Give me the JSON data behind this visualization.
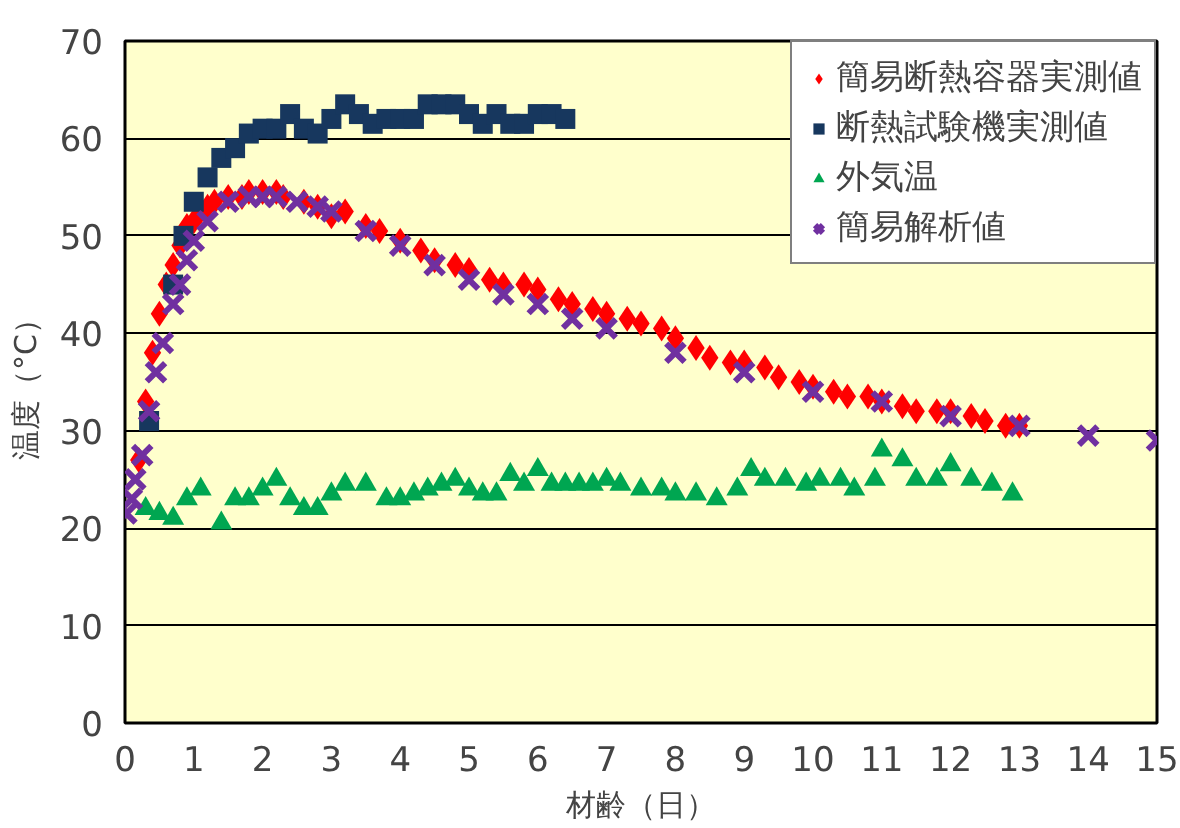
{
  "chart_data": {
    "type": "scatter",
    "xlabel": "材齢（日）",
    "ylabel": "温度（°C）",
    "xlim": [
      0,
      15
    ],
    "ylim": [
      0,
      70
    ],
    "xticks": [
      0,
      1,
      2,
      3,
      4,
      5,
      6,
      7,
      8,
      9,
      10,
      11,
      12,
      13,
      14,
      15
    ],
    "yticks": [
      0,
      10,
      20,
      30,
      40,
      50,
      60,
      70
    ],
    "grid": "y",
    "legend": "top right",
    "series": [
      {
        "name": "簡易断熱容器実測値",
        "color": "#ff0000",
        "marker": "diamond",
        "x": [
          0.2,
          0.3,
          0.4,
          0.5,
          0.6,
          0.7,
          0.8,
          0.9,
          1.0,
          1.1,
          1.2,
          1.3,
          1.5,
          1.7,
          1.8,
          2.0,
          2.2,
          2.3,
          2.6,
          2.8,
          3.0,
          3.2,
          3.5,
          3.7,
          4.0,
          4.3,
          4.5,
          4.8,
          5.0,
          5.3,
          5.5,
          5.8,
          6.0,
          6.3,
          6.5,
          6.8,
          7.0,
          7.3,
          7.5,
          7.8,
          8.0,
          8.3,
          8.5,
          8.8,
          9.0,
          9.3,
          9.5,
          9.8,
          10.0,
          10.3,
          10.5,
          10.8,
          11.0,
          11.3,
          11.5,
          11.8,
          12.0,
          12.3,
          12.5,
          12.8,
          13.0
        ],
        "values": [
          27,
          33,
          38,
          42,
          45,
          47,
          49,
          51,
          51.5,
          52.5,
          53,
          53.5,
          54,
          54,
          54.5,
          54.5,
          54.5,
          54,
          53.5,
          53,
          52,
          52.5,
          51,
          50.5,
          49.5,
          48.5,
          47.5,
          47,
          46.5,
          45.5,
          45,
          45,
          44.5,
          43.5,
          43,
          42.5,
          42,
          41.5,
          41,
          40.5,
          39.5,
          38.5,
          37.5,
          37,
          37,
          36.5,
          35.5,
          35,
          34.5,
          34,
          33.5,
          33.5,
          33,
          32.5,
          32,
          32,
          32,
          31.5,
          31,
          30.5,
          30.5
        ]
      },
      {
        "name": "断熱試験機実測値",
        "color": "#17375e",
        "marker": "square",
        "x": [
          0.35,
          0.7,
          0.85,
          1.0,
          1.2,
          1.4,
          1.6,
          1.8,
          2.0,
          2.2,
          2.4,
          2.6,
          2.8,
          3.0,
          3.2,
          3.4,
          3.6,
          3.8,
          4.0,
          4.2,
          4.4,
          4.6,
          4.8,
          5.0,
          5.2,
          5.4,
          5.6,
          5.8,
          6.0,
          6.2,
          6.4
        ],
        "values": [
          31,
          45,
          50,
          53.5,
          56,
          58,
          59,
          60.5,
          61,
          61,
          62.5,
          61,
          60.5,
          62,
          63.5,
          62.5,
          61.5,
          62,
          62,
          62,
          63.5,
          63.5,
          63.5,
          62.5,
          61.5,
          62.5,
          61.5,
          61.5,
          62.5,
          62.5,
          62
        ]
      },
      {
        "name": "外気温",
        "color": "#00a651",
        "marker": "triangle",
        "x": [
          0.3,
          0.5,
          0.7,
          0.9,
          1.1,
          1.4,
          1.6,
          1.8,
          2.0,
          2.2,
          2.4,
          2.6,
          2.8,
          3.0,
          3.2,
          3.5,
          3.8,
          4.0,
          4.2,
          4.4,
          4.6,
          4.8,
          5.0,
          5.2,
          5.4,
          5.6,
          5.8,
          6.0,
          6.2,
          6.4,
          6.6,
          6.8,
          7.0,
          7.2,
          7.5,
          7.8,
          8.0,
          8.3,
          8.6,
          8.9,
          9.1,
          9.3,
          9.6,
          9.9,
          10.1,
          10.4,
          10.6,
          10.9,
          11.0,
          11.3,
          11.5,
          11.8,
          12.0,
          12.3,
          12.6,
          12.9
        ],
        "values": [
          22,
          21.5,
          21,
          23,
          24,
          20.5,
          23,
          23,
          24,
          25,
          23,
          22,
          22,
          23.5,
          24.5,
          24.5,
          23,
          23,
          23.5,
          24,
          24.5,
          25,
          24,
          23.5,
          23.5,
          25.5,
          24.5,
          26,
          24.5,
          24.5,
          24.5,
          24.5,
          25,
          24.5,
          24,
          24,
          23.5,
          23.5,
          23,
          24,
          26,
          25,
          25,
          24.5,
          25,
          25,
          24,
          25,
          28,
          27,
          25,
          25,
          26.5,
          25,
          24.5,
          23.5
        ]
      },
      {
        "name": "簡易解析値",
        "color": "#7030a0",
        "marker": "x",
        "x": [
          0.02,
          0.1,
          0.15,
          0.25,
          0.35,
          0.45,
          0.55,
          0.7,
          0.8,
          0.9,
          1.0,
          1.2,
          1.5,
          1.8,
          2.0,
          2.2,
          2.5,
          2.8,
          3.0,
          3.5,
          4.0,
          4.5,
          5.0,
          5.5,
          6.0,
          6.5,
          7.0,
          8.0,
          9.0,
          10.0,
          11.0,
          12.0,
          13.0,
          14.0,
          15.0
        ],
        "values": [
          21.5,
          23,
          25,
          27.5,
          32,
          36,
          39,
          43,
          45,
          47.5,
          49.5,
          51.5,
          53.5,
          54,
          54,
          54,
          53.5,
          53,
          52.5,
          50.5,
          49,
          47,
          45.5,
          44,
          43,
          41.5,
          40.5,
          38,
          36,
          34,
          33,
          31.5,
          30.5,
          29.5,
          29
        ]
      }
    ]
  }
}
